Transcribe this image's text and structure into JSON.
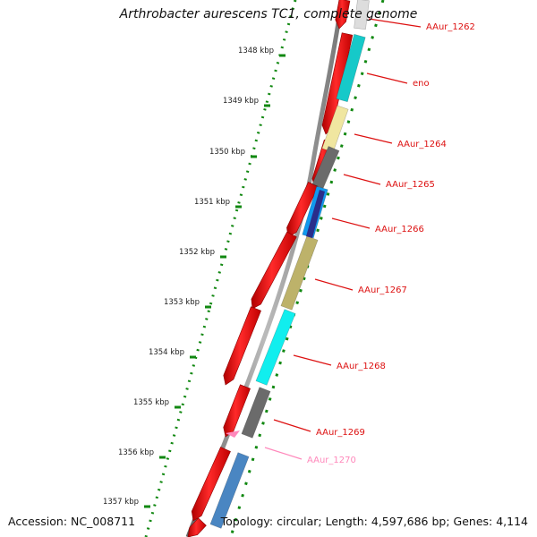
{
  "title": "Arthrobacter aurescens TC1, complete genome",
  "accession": "Accession: NC_008711",
  "topology": "Topology: circular; Length: 4,597,686 bp; Genes: 4,114",
  "ticks": [
    "1348 kbp",
    "1349 kbp",
    "1350 kbp",
    "1351 kbp",
    "1352 kbp",
    "1353 kbp",
    "1354 kbp",
    "1355 kbp",
    "1356 kbp",
    "1357 kbp"
  ],
  "genes": [
    {
      "label": "AAur_1262",
      "color": "#dddddd",
      "labelColor": "#dd1111"
    },
    {
      "label": "eno",
      "color": "#16c9c9",
      "labelColor": "#dd1111"
    },
    {
      "label": "AAur_1264",
      "color": "#f0e6a0",
      "labelColor": "#dd1111"
    },
    {
      "label": "AAur_1265",
      "color": "#6b6b6b",
      "labelColor": "#dd1111"
    },
    {
      "label": "AAur_1266",
      "color": "#1199ee",
      "labelColor": "#dd1111"
    },
    {
      "label": "AAur_1267",
      "color": "#bdb26a",
      "labelColor": "#dd1111"
    },
    {
      "label": "AAur_1268",
      "color": "#11eeee",
      "labelColor": "#dd1111"
    },
    {
      "label": "AAur_1269",
      "color": "#6b6b6b",
      "labelColor": "#dd1111"
    },
    {
      "label": "AAur_1270",
      "color": "#ff88bb",
      "labelColor": "#ff88bb"
    }
  ],
  "colors": {
    "cds": "#ee0000",
    "backbone": "#888888",
    "ticks": "#118811"
  }
}
